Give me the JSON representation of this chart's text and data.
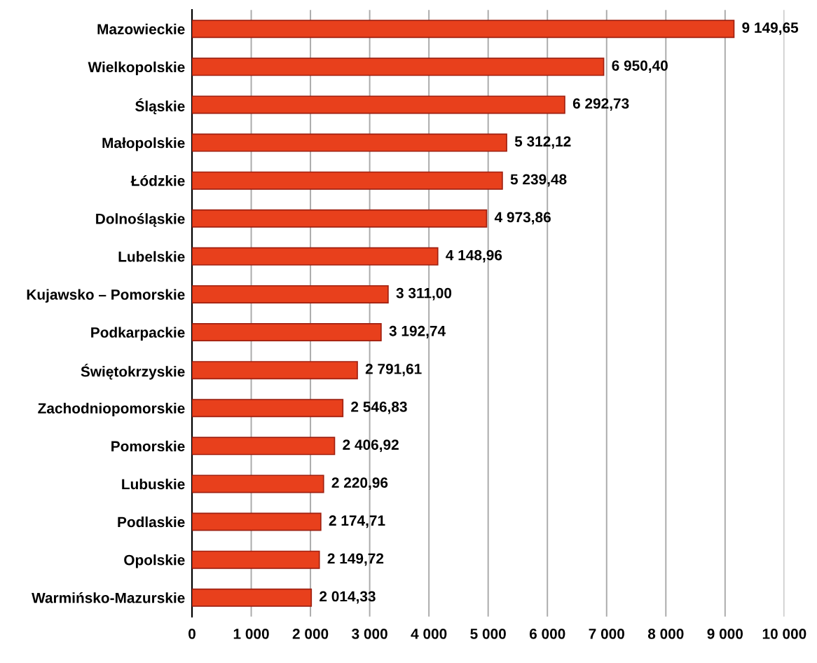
{
  "chart_data": {
    "type": "bar",
    "orientation": "horizontal",
    "categories": [
      "Mazowieckie",
      "Wielkopolskie",
      "Śląskie",
      "Małopolskie",
      "Łódzkie",
      "Dolnośląskie",
      "Lubelskie",
      "Kujawsko – Pomorskie",
      "Podkarpackie",
      "Świętokrzyskie",
      "Zachodniopomorskie",
      "Pomorskie",
      "Lubuskie",
      "Podlaskie",
      "Opolskie",
      "Warmińsko-Mazurskie"
    ],
    "values": [
      9149.65,
      6950.4,
      6292.73,
      5312.12,
      5239.48,
      4973.86,
      4148.96,
      3311.0,
      3192.74,
      2791.61,
      2546.83,
      2406.92,
      2220.96,
      2174.71,
      2149.72,
      2014.33
    ],
    "value_labels": [
      "9 149,65",
      "6 950,40",
      "6 292,73",
      "5 312,12",
      "5 239,48",
      "4 973,86",
      "4 148,96",
      "3 311,00",
      "3 192,74",
      "2 791,61",
      "2 546,83",
      "2 406,92",
      "2 220,96",
      "2 174,71",
      "2 149,72",
      "2 014,33"
    ],
    "color": "#e8401c",
    "xlim": [
      0,
      10000
    ],
    "xticks": [
      0,
      {
        "value": 1000,
        "label": "1 000"
      },
      {
        "value": 2000,
        "label": "2 000"
      },
      {
        "value": 3000,
        "label": "3 000"
      },
      {
        "value": 4000,
        "label": "4 000"
      },
      {
        "value": 5000,
        "label": "5 000"
      },
      {
        "value": 6000,
        "label": "6 000"
      },
      {
        "value": 7000,
        "label": "7 000"
      },
      {
        "value": 8000,
        "label": "8 000"
      },
      {
        "value": 9000,
        "label": "9 000"
      },
      {
        "value": 10000,
        "label": "10 000"
      }
    ],
    "grid": "x",
    "legend": false
  }
}
